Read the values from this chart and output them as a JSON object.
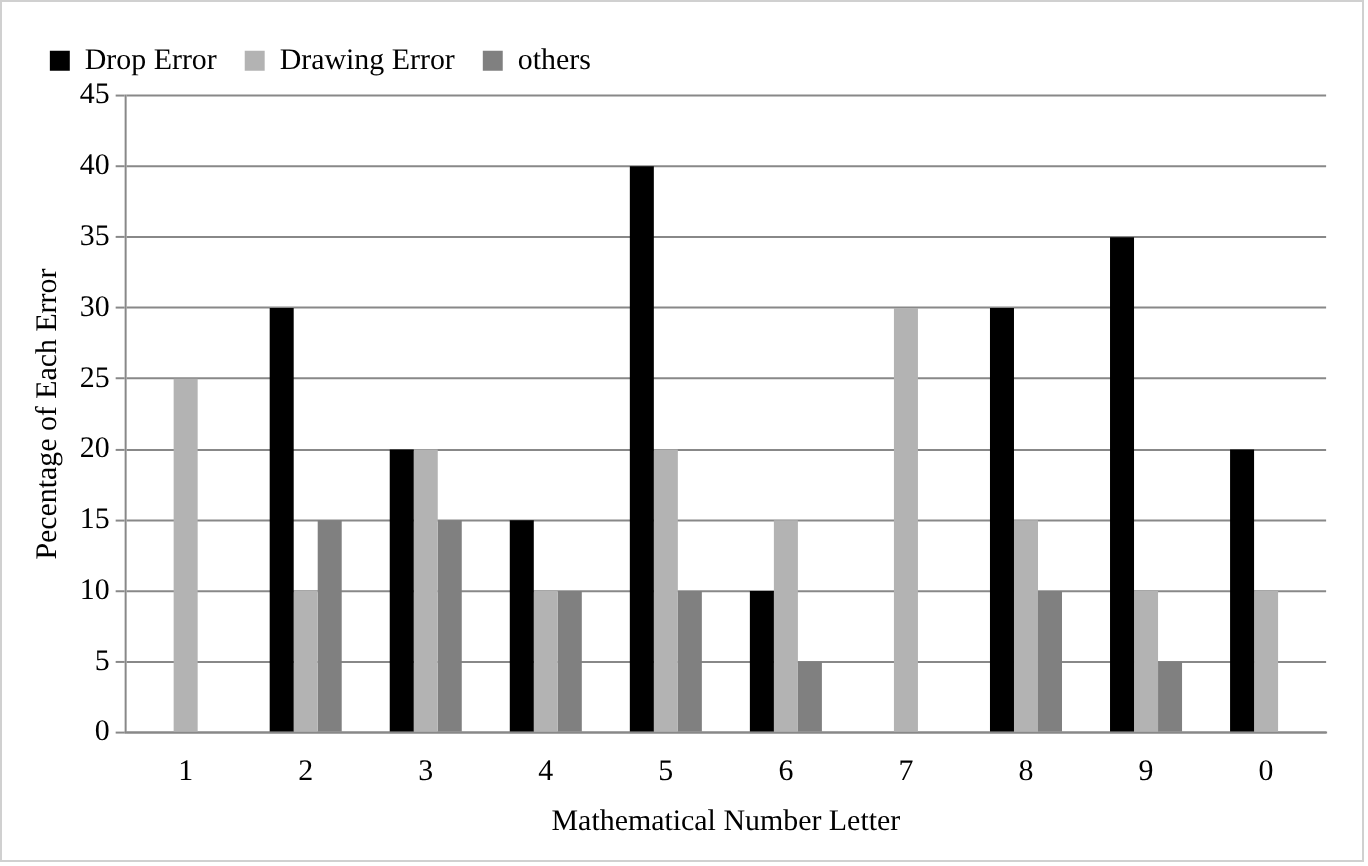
{
  "chart_data": {
    "type": "bar",
    "xlabel": "Mathematical Number Letter",
    "ylabel": "Pecentage of Each Error",
    "categories": [
      "1",
      "2",
      "3",
      "4",
      "5",
      "6",
      "7",
      "8",
      "9",
      "0"
    ],
    "series": [
      {
        "name": "Drop Error",
        "color": "#000000",
        "values": [
          0,
          30,
          20,
          15,
          40,
          10,
          0,
          30,
          35,
          20
        ]
      },
      {
        "name": "Drawing Error",
        "color": "#b3b3b3",
        "values": [
          25,
          10,
          20,
          10,
          20,
          15,
          30,
          15,
          10,
          10
        ]
      },
      {
        "name": "others",
        "color": "#808080",
        "values": [
          0,
          15,
          15,
          10,
          10,
          5,
          0,
          10,
          5,
          0
        ]
      }
    ],
    "ylim": [
      0,
      45
    ],
    "yticks": [
      0,
      5,
      10,
      15,
      20,
      25,
      30,
      35,
      40,
      45
    ],
    "grid": "y",
    "legend": "top"
  }
}
